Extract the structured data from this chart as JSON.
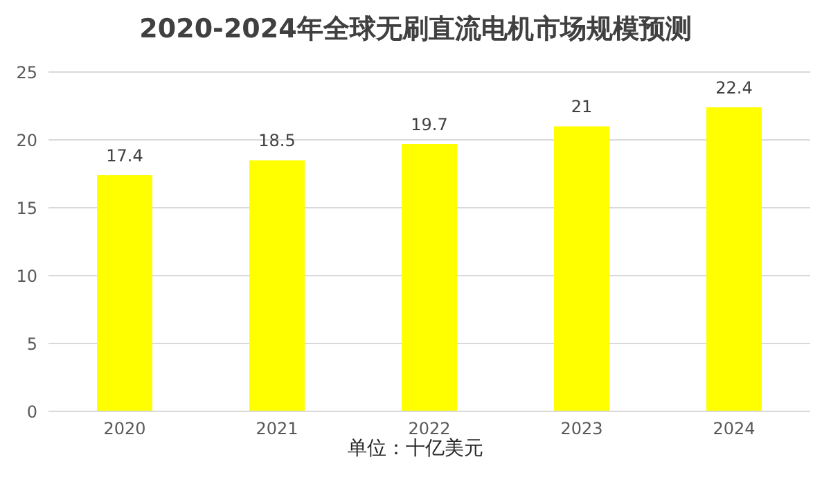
{
  "chart_data": {
    "type": "bar",
    "title": "2020-2024年全球无刷直流电机市场规模预测",
    "xlabel": "单位：十亿美元",
    "categories": [
      "2020",
      "2021",
      "2022",
      "2023",
      "2024"
    ],
    "series": [
      {
        "color": "#ffff00",
        "values": [
          17.4,
          18.5,
          19.7,
          21,
          22.4
        ]
      }
    ],
    "ylim": [
      0,
      25
    ],
    "yticks": [
      0,
      5,
      10,
      15,
      20,
      25
    ],
    "grid": "y",
    "data_labels": true,
    "legend": false
  }
}
